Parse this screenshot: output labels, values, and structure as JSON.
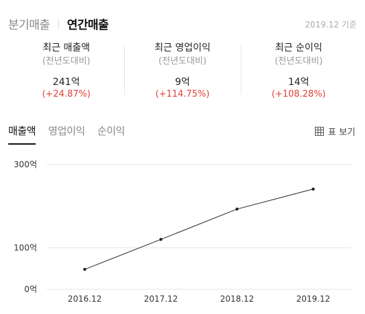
{
  "period_tabs": [
    {
      "label": "분기매출",
      "active": false
    },
    {
      "label": "연간매출",
      "active": true
    }
  ],
  "as_of": "2019.12 기준",
  "summary": [
    {
      "title": "최근 매출액",
      "subtitle": "(전년도대비)",
      "value": "241억",
      "change": "(+24.87%)"
    },
    {
      "title": "최근 영업이익",
      "subtitle": "(전년도대비)",
      "value": "9억",
      "change": "(+114.75%)"
    },
    {
      "title": "최근 순이익",
      "subtitle": "(전년도대비)",
      "value": "14억",
      "change": "(+108.28%)"
    }
  ],
  "metric_tabs": [
    {
      "label": "매출액",
      "active": true
    },
    {
      "label": "영업이익",
      "active": false
    },
    {
      "label": "순이익",
      "active": false
    }
  ],
  "table_view_label": "표 보기",
  "icons": {
    "table_view": "grid-icon"
  },
  "colors": {
    "increase": "#e0413a",
    "line": "#222222",
    "grid": "#e6e6e6"
  },
  "chart_data": {
    "type": "line",
    "title": "",
    "xlabel": "",
    "ylabel": "",
    "categories": [
      "2016.12",
      "2017.12",
      "2018.12",
      "2019.12"
    ],
    "series": [
      {
        "values": [
          48,
          120,
          193,
          241
        ]
      }
    ],
    "y_ticks": [
      {
        "value": 0,
        "label": "0억"
      },
      {
        "value": 100,
        "label": "100억"
      },
      {
        "value": 300,
        "label": "300억"
      }
    ],
    "ylim": [
      0,
      300
    ],
    "grid": "horizontal"
  }
}
